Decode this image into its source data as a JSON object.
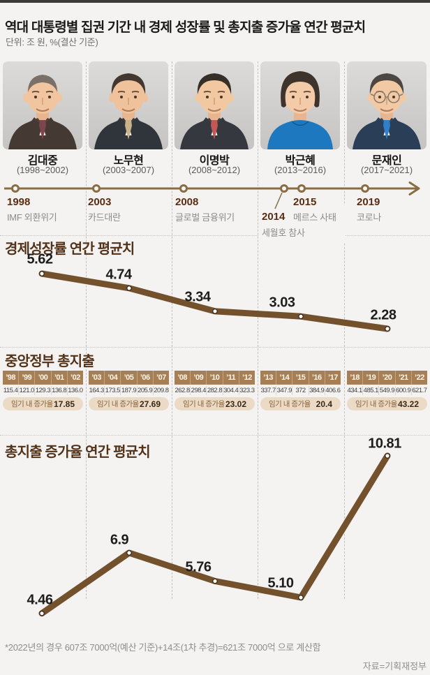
{
  "page": {
    "title": "역대 대통령별 집권 기간 내 경제 성장률 및 총지출 증가율 연간 평균치",
    "unit_note": "단위: 조 원, %(결산 기준)",
    "footnote": "*2022년의 경우 607조 7000억(예산 기준)+14조(1차 추경)=621조 7000억 으로 계산함",
    "source": "자료=기획재정부"
  },
  "colors": {
    "background": "#f4f3f1",
    "top_bar": "#3a3a3a",
    "line_brown": "#74512d",
    "timeline_brown": "#8a6c44",
    "section_title_brown": "#53321a",
    "table_year_bg": "#a87f54",
    "pill_bg": "#ebdbc6"
  },
  "presidents": [
    {
      "name": "김대중",
      "term": "(1998~2002)",
      "avatar": {
        "suit": "#453a33",
        "shirt": "#f6f2ea",
        "tie": "#7e4450",
        "hair": "#7a7068",
        "skin": "#f1c5a0",
        "hairStyle": "receded",
        "glasses": false
      }
    },
    {
      "name": "노무현",
      "term": "(2003~2007)",
      "avatar": {
        "suit": "#30343b",
        "shirt": "#f6f2ea",
        "tie": "#c9b18a",
        "hair": "#42382f",
        "skin": "#efc29b",
        "hairStyle": "full",
        "glasses": false
      }
    },
    {
      "name": "이명박",
      "term": "(2008~2012)",
      "avatar": {
        "suit": "#35383f",
        "shirt": "#f8f5ef",
        "tie": "#c35753",
        "hair": "#352f27",
        "skin": "#f2c8a0",
        "hairStyle": "full",
        "glasses": false
      }
    },
    {
      "name": "박근혜",
      "term": "(2013~2016)",
      "avatar": {
        "suit": "#1e78c0",
        "shirt": "",
        "tie": "",
        "hair": "#3e342c",
        "skin": "#f3cba8",
        "hairStyle": "female",
        "glasses": false
      }
    },
    {
      "name": "문재인",
      "term": "(2017~2021)",
      "avatar": {
        "suit": "#2b3e57",
        "shirt": "#f8f5ef",
        "tie": "#2f7fca",
        "hair": "#4d4741",
        "skin": "#f2c9a3",
        "hairStyle": "full",
        "glasses": true
      }
    }
  ],
  "timeline": {
    "events": [
      {
        "year": "1998",
        "label": "IMF 외환위기",
        "side": "above"
      },
      {
        "year": "2003",
        "label": "카드대란",
        "side": "above"
      },
      {
        "year": "2008",
        "label": "글로벌 금융위기",
        "side": "above"
      },
      {
        "year": "2014",
        "label": "세월호 참사",
        "side": "below"
      },
      {
        "year": "2015",
        "label": "메르스 사태",
        "side": "above"
      },
      {
        "year": "2019",
        "label": "코로나",
        "side": "above"
      }
    ]
  },
  "chart_data": [
    {
      "type": "line",
      "title": "경제성장률 연간 평균치",
      "categories": [
        "김대중",
        "노무현",
        "이명박",
        "박근혜",
        "문재인"
      ],
      "values": [
        5.62,
        4.74,
        3.34,
        3.03,
        2.28
      ],
      "labels": [
        "5.62",
        "4.74",
        "3.34",
        "3.03",
        "2.28"
      ],
      "unit": "%",
      "grid": "dashed-columns",
      "legend": "none"
    },
    {
      "type": "table",
      "title": "중앙정부 총지출",
      "growth_label": "임기 내 증가율",
      "groups": [
        {
          "years": [
            "’98",
            "’99",
            "’00",
            "’01",
            "’02"
          ],
          "values": [
            "115.4",
            "121.0",
            "129.3",
            "136.8",
            "136.0"
          ],
          "growth": "17.85"
        },
        {
          "years": [
            "’03",
            "’04",
            "’05",
            "’06",
            "’07"
          ],
          "values": [
            "164.3",
            "173.5",
            "187.9",
            "205.9",
            "209.8"
          ],
          "growth": "27.69"
        },
        {
          "years": [
            "’08",
            "’09",
            "’10",
            "’11",
            "’12"
          ],
          "values": [
            "262.8",
            "298.4",
            "282.8",
            "304.4",
            "323.3"
          ],
          "growth": "23.02"
        },
        {
          "years": [
            "’13",
            "’14",
            "’15",
            "’16",
            "’17"
          ],
          "values": [
            "337.7",
            "347.9",
            "372",
            "384.9",
            "406.6"
          ],
          "growth": "20.4"
        },
        {
          "years": [
            "’18",
            "’19",
            "’20",
            "’21",
            "’22"
          ],
          "values": [
            "434.1",
            "485.1",
            "549.9",
            "600.9",
            "621.7"
          ],
          "growth": "43.22"
        }
      ]
    },
    {
      "type": "line",
      "title": "총지출 증가율 연간 평균치",
      "categories": [
        "김대중",
        "노무현",
        "이명박",
        "박근혜",
        "문재인"
      ],
      "values": [
        4.46,
        6.9,
        5.76,
        5.1,
        10.81
      ],
      "labels": [
        "4.46",
        "6.9",
        "5.76",
        "5.10",
        "10.81"
      ],
      "unit": "%",
      "grid": "dashed-columns",
      "legend": "none"
    }
  ]
}
